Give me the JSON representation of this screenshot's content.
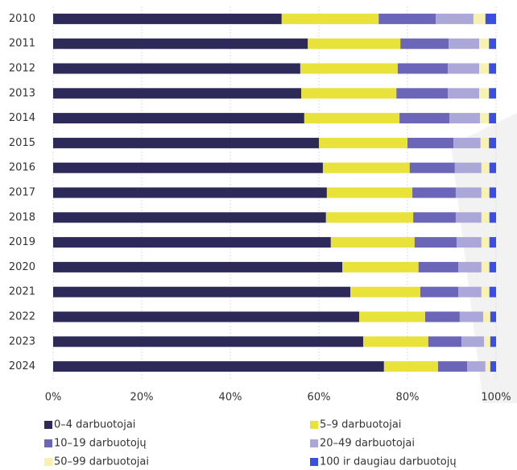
{
  "chart_data": {
    "type": "stacked_barh",
    "categories": [
      "2010",
      "2011",
      "2012",
      "2013",
      "2014",
      "2015",
      "2016",
      "2017",
      "2018",
      "2019",
      "2020",
      "2021",
      "2022",
      "2023",
      "2024"
    ],
    "series": [
      {
        "name": "0–4 darbuotojai",
        "color": "#2d2a5a",
        "values": [
          51.6,
          57.5,
          55.8,
          56.0,
          56.7,
          60.0,
          60.9,
          61.8,
          61.6,
          62.7,
          65.3,
          67.1,
          69.1,
          70.0,
          74.7
        ]
      },
      {
        "name": "5–9 darbuotojai",
        "color": "#e9e23a",
        "values": [
          21.9,
          20.9,
          22.0,
          21.5,
          21.5,
          20.0,
          19.6,
          19.3,
          19.7,
          18.9,
          17.2,
          15.8,
          14.9,
          14.7,
          12.2
        ]
      },
      {
        "name": "10–19 darbuotojų",
        "color": "#6b66b8",
        "values": [
          12.9,
          10.9,
          11.3,
          11.6,
          11.3,
          10.4,
          10.2,
          9.8,
          9.6,
          9.5,
          9.0,
          8.6,
          7.8,
          7.5,
          6.6
        ]
      },
      {
        "name": "20–49 darbuotojai",
        "color": "#aba7d8",
        "values": [
          8.5,
          6.9,
          7.1,
          7.1,
          6.9,
          6.1,
          6.0,
          5.8,
          5.8,
          5.6,
          5.2,
          5.2,
          5.3,
          5.1,
          4.1
        ]
      },
      {
        "name": "50–99 darbuotojai",
        "color": "#f7f2b2",
        "values": [
          2.7,
          2.2,
          2.2,
          2.2,
          2.0,
          1.9,
          1.8,
          1.8,
          1.8,
          1.8,
          1.8,
          1.8,
          1.6,
          1.4,
          1.1
        ]
      },
      {
        "name": "100 ir daugiau darbuotojų",
        "color": "#3a4fe0",
        "values": [
          2.4,
          1.6,
          1.6,
          1.6,
          1.6,
          1.6,
          1.5,
          1.5,
          1.5,
          1.5,
          1.5,
          1.5,
          1.3,
          1.3,
          1.3
        ]
      }
    ],
    "xlim": [
      0,
      100
    ],
    "xticks": [
      {
        "value": 0,
        "label": "0%"
      },
      {
        "value": 20,
        "label": "20%"
      },
      {
        "value": 40,
        "label": "40%"
      },
      {
        "value": 60,
        "label": "60%"
      },
      {
        "value": 80,
        "label": "80%"
      },
      {
        "value": 100,
        "label": "100%"
      }
    ],
    "grid": true
  }
}
